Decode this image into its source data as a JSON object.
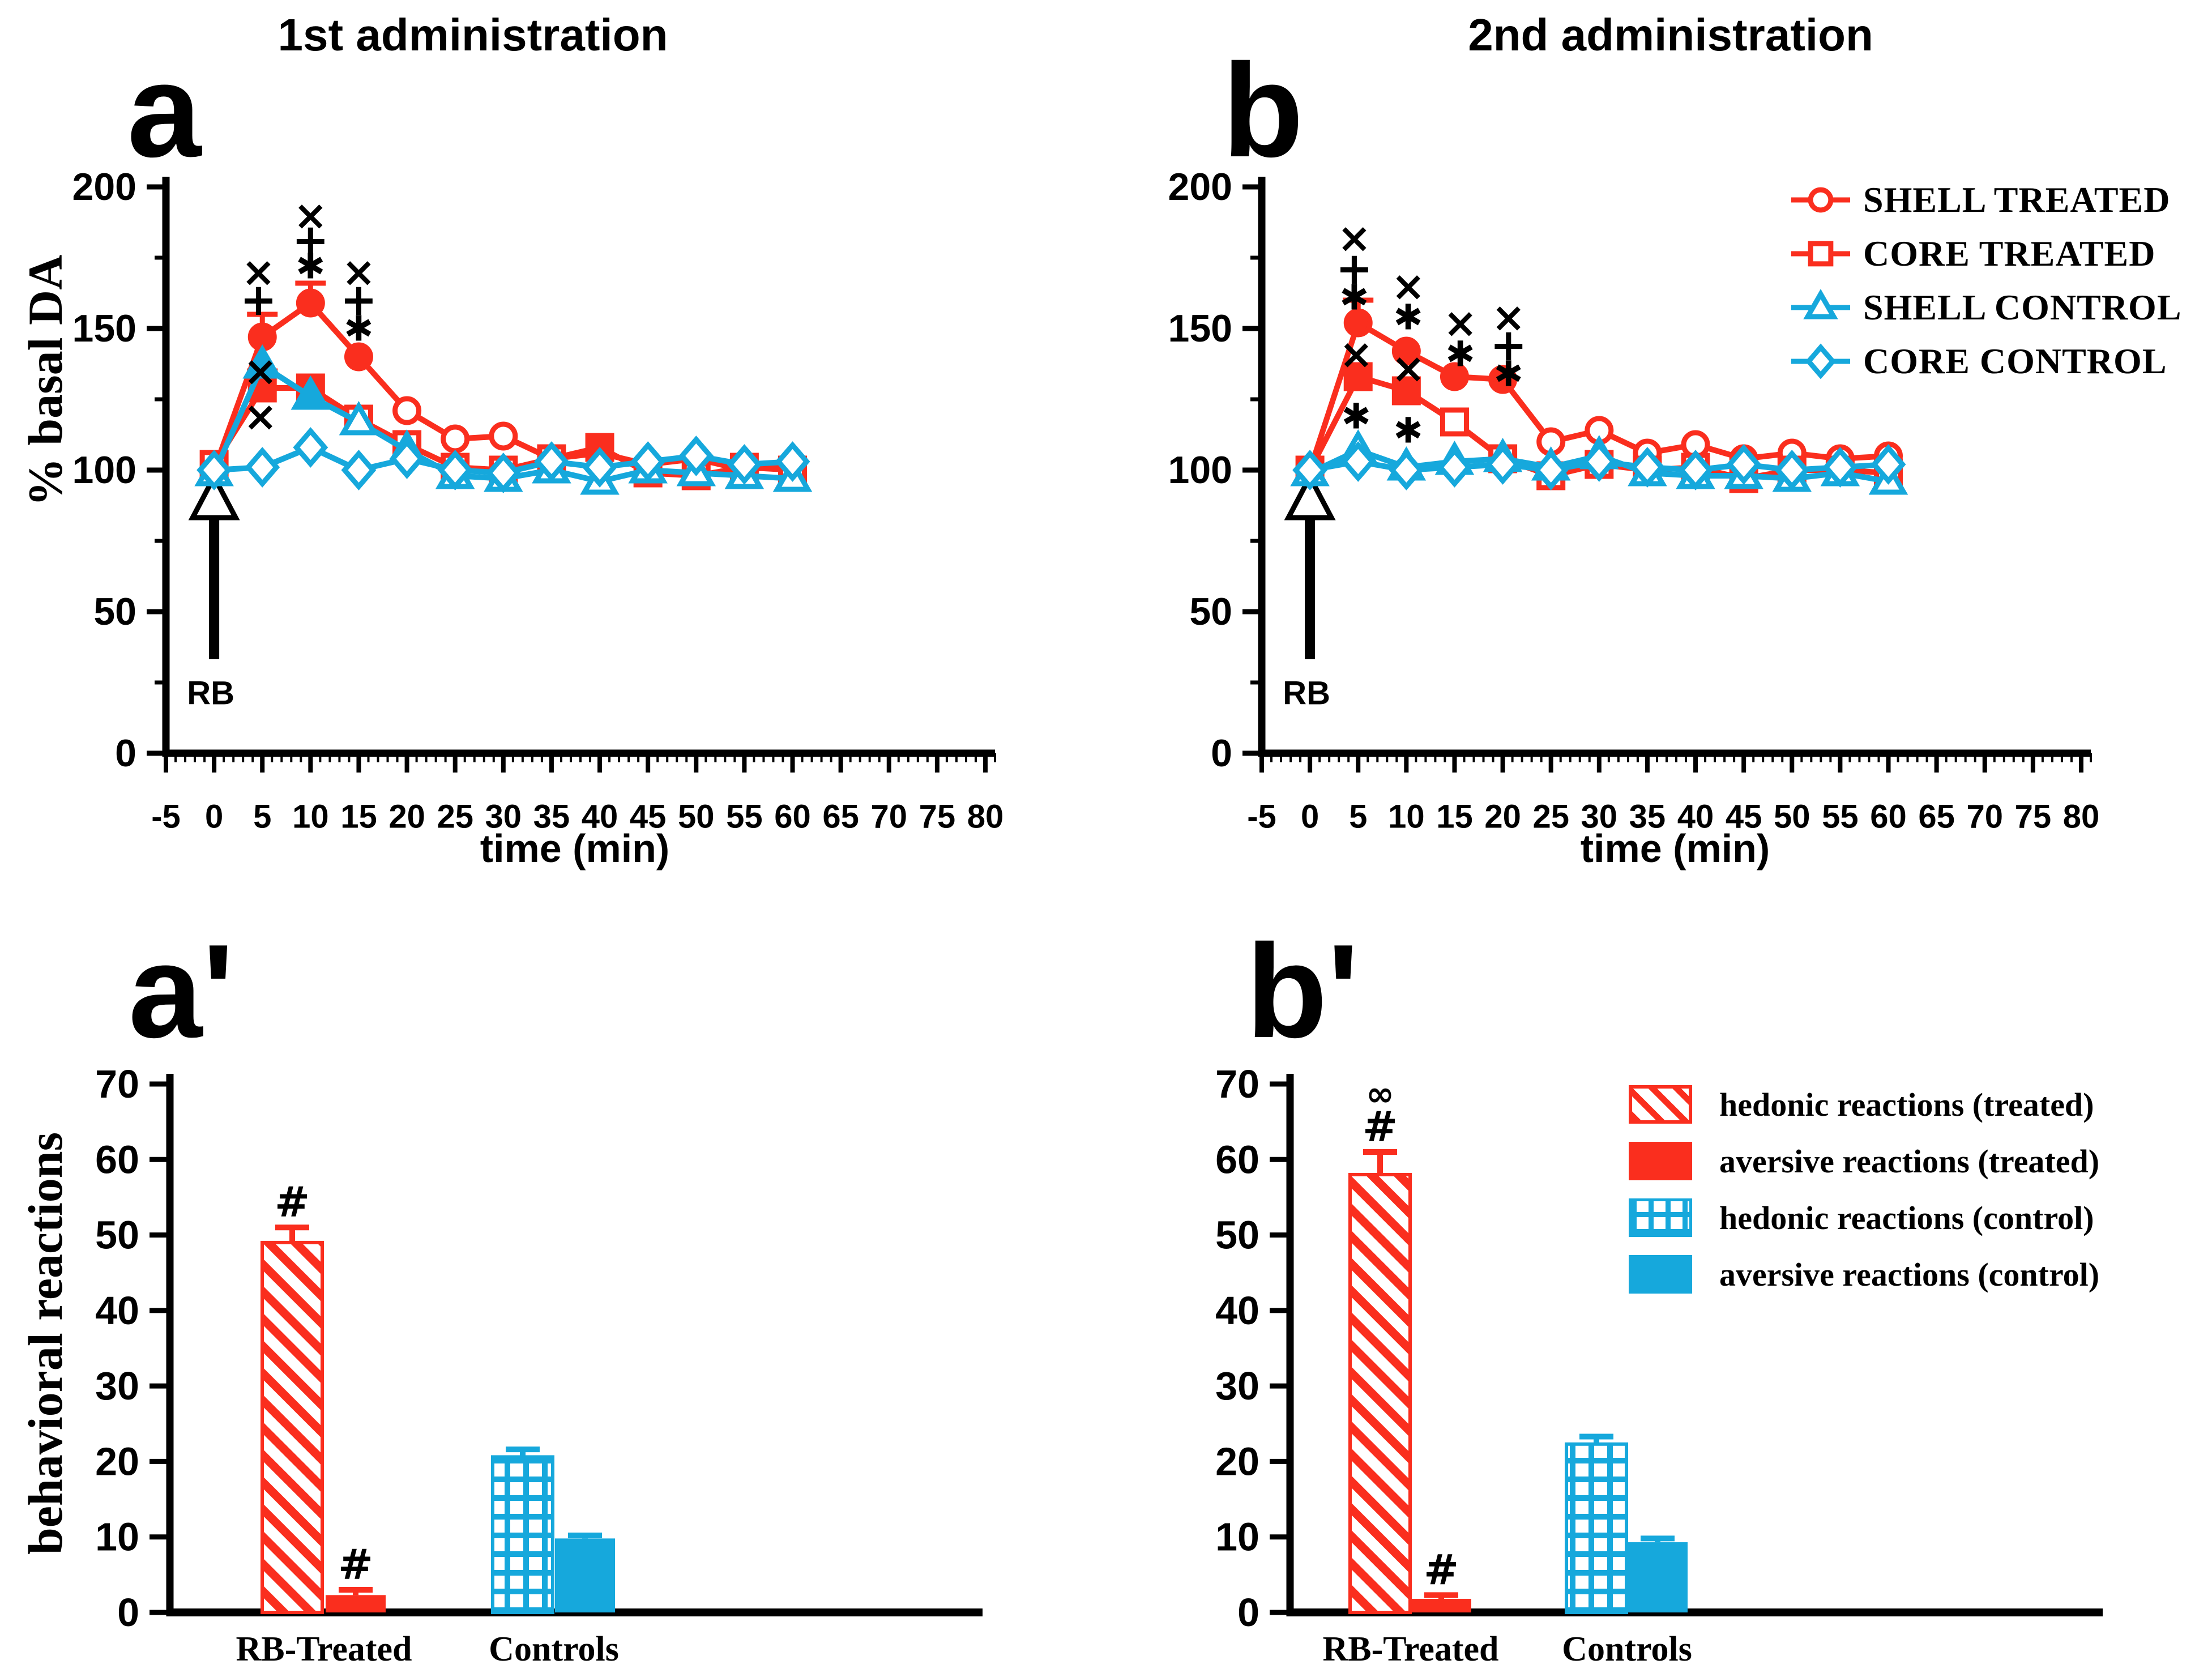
{
  "colors": {
    "red": "#fa2e1e",
    "blue": "#16a8dc",
    "black": "#000000"
  },
  "legends": {
    "top": {
      "items": [
        {
          "label": "SHELL TREATED",
          "marker": "circle",
          "color": "red"
        },
        {
          "label": "CORE TREATED",
          "marker": "square",
          "color": "red"
        },
        {
          "label": "SHELL CONTROL",
          "marker": "triangle",
          "color": "blue"
        },
        {
          "label": "CORE CONTROL",
          "marker": "diamond",
          "color": "blue"
        }
      ]
    },
    "bottom": {
      "items": [
        {
          "label": "hedonic reactions (treated)",
          "pattern": "hatch",
          "color": "red"
        },
        {
          "label": "aversive reactions (treated)",
          "pattern": "solid",
          "color": "red"
        },
        {
          "label": "hedonic reactions (control)",
          "pattern": "check",
          "color": "blue"
        },
        {
          "label": "aversive reactions (control)",
          "pattern": "solid",
          "color": "blue"
        }
      ]
    }
  },
  "chart_data": [
    {
      "type": "line",
      "id": "a",
      "panel_letter": "a",
      "title": "1st administration",
      "xlabel": "time (min)",
      "ylabel": "% basal DA",
      "xlim": [
        -5,
        81
      ],
      "ylim": [
        0,
        200
      ],
      "xticks": [
        -5,
        0,
        5,
        10,
        15,
        20,
        25,
        30,
        35,
        40,
        45,
        50,
        55,
        60,
        65,
        70,
        75,
        80
      ],
      "yticks": [
        0,
        50,
        100,
        150,
        200
      ],
      "yminor": [
        25,
        75,
        125,
        175
      ],
      "x": [
        0,
        5,
        10,
        15,
        20,
        25,
        30,
        35,
        40,
        45,
        50,
        55,
        60
      ],
      "event": {
        "x": 0,
        "label": "RB"
      },
      "series": [
        {
          "name": "SHELL TREATED",
          "color": "red",
          "marker": "circle",
          "values": [
            100,
            147,
            159,
            140,
            121,
            111,
            112,
            104,
            106,
            102,
            104,
            100,
            102
          ],
          "filled": [
            1,
            2,
            3
          ],
          "err_up": [
            0,
            8,
            7,
            0,
            0,
            0,
            0,
            0,
            0,
            0,
            0,
            0,
            0
          ]
        },
        {
          "name": "CORE TREATED",
          "color": "red",
          "marker": "square",
          "values": [
            102,
            129,
            129,
            118,
            109,
            101,
            100,
            104,
            108,
            99,
            98,
            101,
            100
          ],
          "filled": [
            1,
            2,
            8
          ],
          "err_up": [
            0,
            6,
            0,
            0,
            0,
            0,
            0,
            0,
            0,
            0,
            0,
            0,
            0
          ]
        },
        {
          "name": "SHELL CONTROL",
          "color": "blue",
          "marker": "triangle",
          "values": [
            99,
            137,
            126,
            117,
            107,
            98,
            97,
            100,
            96,
            100,
            99,
            98,
            97
          ],
          "filled": [
            1,
            2
          ],
          "err_up": [
            0,
            0,
            0,
            0,
            0,
            0,
            0,
            0,
            0,
            0,
            0,
            0,
            0
          ]
        },
        {
          "name": "CORE CONTROL",
          "color": "blue",
          "marker": "diamond",
          "values": [
            100,
            101,
            108,
            100,
            104,
            100,
            99,
            103,
            101,
            103,
            105,
            102,
            103
          ],
          "filled": [],
          "err_up": [
            0,
            0,
            0,
            0,
            0,
            0,
            0,
            0,
            0,
            0,
            0,
            0,
            0
          ]
        }
      ],
      "annotations": [
        {
          "x": 4.6,
          "y": 170,
          "s": "×"
        },
        {
          "x": 4.6,
          "y": 160,
          "s": "+"
        },
        {
          "x": 4.8,
          "y": 135,
          "s": "×"
        },
        {
          "x": 4.8,
          "y": 119,
          "s": "×"
        },
        {
          "x": 10,
          "y": 190,
          "s": "×"
        },
        {
          "x": 10,
          "y": 181,
          "s": "+"
        },
        {
          "x": 10,
          "y": 172,
          "s": "✱"
        },
        {
          "x": 15,
          "y": 170,
          "s": "×"
        },
        {
          "x": 15,
          "y": 160,
          "s": "+"
        },
        {
          "x": 15,
          "y": 150,
          "s": "✱"
        }
      ]
    },
    {
      "type": "line",
      "id": "b",
      "panel_letter": "b",
      "title": "2nd administration",
      "xlabel": "time (min)",
      "ylabel": "% basal DA",
      "xlim": [
        -5,
        81
      ],
      "ylim": [
        0,
        200
      ],
      "xticks": [
        -5,
        0,
        5,
        10,
        15,
        20,
        25,
        30,
        35,
        40,
        45,
        50,
        55,
        60,
        65,
        70,
        75,
        80
      ],
      "yticks": [
        0,
        50,
        100,
        150,
        200
      ],
      "yminor": [
        25,
        75,
        125,
        175
      ],
      "x": [
        0,
        5,
        10,
        15,
        20,
        25,
        30,
        35,
        40,
        45,
        50,
        55,
        60
      ],
      "event": {
        "x": 0,
        "label": "RB"
      },
      "series": [
        {
          "name": "SHELL TREATED",
          "color": "red",
          "marker": "circle",
          "values": [
            100,
            152,
            142,
            133,
            132,
            110,
            114,
            106,
            109,
            104,
            106,
            104,
            105
          ],
          "filled": [
            1,
            2,
            3,
            4
          ],
          "err_up": [
            0,
            8,
            0,
            0,
            0,
            0,
            0,
            0,
            0,
            0,
            0,
            0,
            0
          ]
        },
        {
          "name": "CORE TREATED",
          "color": "red",
          "marker": "square",
          "values": [
            100,
            133,
            128,
            117,
            104,
            98,
            102,
            100,
            101,
            97,
            100,
            100,
            99
          ],
          "filled": [
            1,
            2
          ],
          "err_up": [
            0,
            0,
            0,
            0,
            0,
            0,
            0,
            0,
            0,
            0,
            0,
            0,
            0
          ]
        },
        {
          "name": "SHELL CONTROL",
          "color": "blue",
          "marker": "triangle",
          "values": [
            99,
            107,
            101,
            103,
            104,
            101,
            105,
            99,
            98,
            98,
            97,
            99,
            96
          ],
          "filled": [],
          "err_up": [
            0,
            0,
            0,
            0,
            0,
            0,
            0,
            0,
            0,
            0,
            0,
            0,
            0
          ]
        },
        {
          "name": "CORE CONTROL",
          "color": "blue",
          "marker": "diamond",
          "values": [
            100,
            103,
            100,
            101,
            102,
            100,
            103,
            101,
            100,
            102,
            100,
            101,
            102
          ],
          "filled": [],
          "err_up": [
            0,
            0,
            0,
            0,
            0,
            0,
            0,
            0,
            0,
            0,
            0,
            0,
            0
          ]
        }
      ],
      "annotations": [
        {
          "x": 4.6,
          "y": 182,
          "s": "×"
        },
        {
          "x": 4.6,
          "y": 171,
          "s": "+"
        },
        {
          "x": 4.6,
          "y": 161,
          "s": "✱"
        },
        {
          "x": 4.8,
          "y": 141,
          "s": "×"
        },
        {
          "x": 4.8,
          "y": 119,
          "s": "✱"
        },
        {
          "x": 10.2,
          "y": 165,
          "s": "×"
        },
        {
          "x": 10.2,
          "y": 154,
          "s": "✱"
        },
        {
          "x": 10.2,
          "y": 136,
          "s": "×"
        },
        {
          "x": 10.2,
          "y": 114,
          "s": "✱"
        },
        {
          "x": 15.6,
          "y": 152,
          "s": "×"
        },
        {
          "x": 15.6,
          "y": 141,
          "s": "✱"
        },
        {
          "x": 20.6,
          "y": 154,
          "s": "×"
        },
        {
          "x": 20.6,
          "y": 144,
          "s": "+"
        },
        {
          "x": 20.6,
          "y": 134,
          "s": "✱"
        }
      ]
    },
    {
      "type": "bar",
      "id": "a_prime",
      "panel_letter": "a'",
      "ylabel": "behavioral reactions",
      "ylim": [
        0,
        70
      ],
      "yticks": [
        0,
        10,
        20,
        30,
        40,
        50,
        60,
        70
      ],
      "categories": [
        "RB-Treated",
        "Controls"
      ],
      "bars": [
        {
          "name": "hedonic reactions (treated)",
          "color": "red",
          "pattern": "hatch",
          "value": 49,
          "err": 2,
          "sig": [
            "#"
          ]
        },
        {
          "name": "aversive reactions (treated)",
          "color": "red",
          "pattern": "solid",
          "value": 2.3,
          "err": 0.7,
          "sig": [
            "#"
          ]
        },
        {
          "name": "hedonic reactions (control)",
          "color": "blue",
          "pattern": "check",
          "value": 20.6,
          "err": 1,
          "sig": []
        },
        {
          "name": "aversive reactions (control)",
          "color": "blue",
          "pattern": "solid",
          "value": 9.8,
          "err": 0.4,
          "sig": []
        }
      ]
    },
    {
      "type": "bar",
      "id": "b_prime",
      "panel_letter": "b'",
      "ylabel": "behavioral reactions",
      "ylim": [
        0,
        70
      ],
      "yticks": [
        0,
        10,
        20,
        30,
        40,
        50,
        60,
        70
      ],
      "categories": [
        "RB-Treated",
        "Controls"
      ],
      "bars": [
        {
          "name": "hedonic reactions (treated)",
          "color": "red",
          "pattern": "hatch",
          "value": 58,
          "err": 3,
          "sig": [
            "∞",
            "#"
          ]
        },
        {
          "name": "aversive reactions (treated)",
          "color": "red",
          "pattern": "solid",
          "value": 1.8,
          "err": 0.5,
          "sig": [
            "#"
          ]
        },
        {
          "name": "hedonic reactions (control)",
          "color": "blue",
          "pattern": "check",
          "value": 22.3,
          "err": 1,
          "sig": []
        },
        {
          "name": "aversive reactions (control)",
          "color": "blue",
          "pattern": "solid",
          "value": 9.3,
          "err": 0.5,
          "sig": []
        }
      ]
    }
  ]
}
